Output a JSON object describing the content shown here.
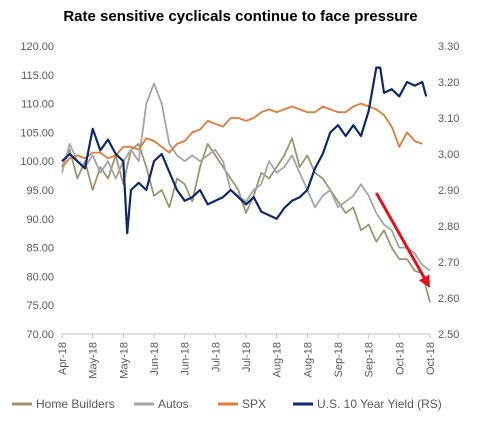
{
  "chart_data": {
    "type": "line",
    "title": "Rate sensitive cyclicals  continue to face pressure",
    "y_left": {
      "range": [
        70,
        120
      ],
      "ticks": [
        "120.00",
        "115.00",
        "110.00",
        "105.00",
        "100.00",
        "95.00",
        "90.00",
        "85.00",
        "80.00",
        "75.00",
        "70.00"
      ]
    },
    "y_right": {
      "range": [
        2.5,
        3.3
      ],
      "ticks": [
        "3.30",
        "3.20",
        "3.10",
        "3.00",
        "2.90",
        "2.80",
        "2.70",
        "2.60",
        "2.50"
      ]
    },
    "x_ticks": [
      "Apr-18",
      "May-18",
      "May-18",
      "Jun-18",
      "Jun-18",
      "Jul-18",
      "Jul-18",
      "Aug-18",
      "Aug-18",
      "Sep-18",
      "Sep-18",
      "Oct-18",
      "Oct-18"
    ],
    "grid": false,
    "legend_position": "bottom",
    "series": [
      {
        "name": "Home Builders",
        "axis": "left",
        "color": "#A09470",
        "points": [
          [
            0,
            99
          ],
          [
            2,
            102
          ],
          [
            4,
            97
          ],
          [
            6,
            100
          ],
          [
            8,
            95
          ],
          [
            10,
            99
          ],
          [
            12,
            97
          ],
          [
            14,
            101
          ],
          [
            16,
            96
          ],
          [
            18,
            102
          ],
          [
            20,
            103
          ],
          [
            22,
            99
          ],
          [
            24,
            94
          ],
          [
            26,
            95
          ],
          [
            28,
            92
          ],
          [
            30,
            97
          ],
          [
            32,
            96
          ],
          [
            34,
            93
          ],
          [
            36,
            99
          ],
          [
            38,
            103
          ],
          [
            40,
            101
          ],
          [
            42,
            99
          ],
          [
            44,
            97
          ],
          [
            46,
            95
          ],
          [
            48,
            91
          ],
          [
            50,
            94
          ],
          [
            52,
            98
          ],
          [
            54,
            97
          ],
          [
            56,
            99
          ],
          [
            58,
            101
          ],
          [
            60,
            104
          ],
          [
            62,
            99
          ],
          [
            64,
            101
          ],
          [
            66,
            98
          ],
          [
            68,
            97
          ],
          [
            70,
            95
          ],
          [
            72,
            93
          ],
          [
            74,
            91
          ],
          [
            76,
            92
          ],
          [
            78,
            88
          ],
          [
            80,
            89
          ],
          [
            82,
            86
          ],
          [
            84,
            88
          ],
          [
            86,
            85
          ],
          [
            88,
            83
          ],
          [
            90,
            83
          ],
          [
            92,
            81
          ],
          [
            94,
            80.5
          ],
          [
            96,
            75.5
          ]
        ]
      },
      {
        "name": "Autos",
        "axis": "left",
        "color": "#A5A5A5",
        "points": [
          [
            0,
            98
          ],
          [
            2,
            103
          ],
          [
            4,
            100
          ],
          [
            6,
            99
          ],
          [
            8,
            101
          ],
          [
            10,
            98
          ],
          [
            12,
            100
          ],
          [
            14,
            97
          ],
          [
            16,
            100
          ],
          [
            18,
            102
          ],
          [
            20,
            100
          ],
          [
            22,
            110
          ],
          [
            24,
            113.5
          ],
          [
            26,
            110
          ],
          [
            28,
            103
          ],
          [
            30,
            101
          ],
          [
            32,
            100
          ],
          [
            34,
            101
          ],
          [
            36,
            100
          ],
          [
            38,
            101
          ],
          [
            40,
            102
          ],
          [
            42,
            100
          ],
          [
            44,
            95
          ],
          [
            46,
            94
          ],
          [
            48,
            93
          ],
          [
            50,
            95
          ],
          [
            52,
            96
          ],
          [
            54,
            100
          ],
          [
            56,
            98
          ],
          [
            58,
            99
          ],
          [
            60,
            101
          ],
          [
            62,
            98
          ],
          [
            64,
            95
          ],
          [
            66,
            92
          ],
          [
            68,
            94
          ],
          [
            70,
            95
          ],
          [
            72,
            92
          ],
          [
            74,
            93
          ],
          [
            76,
            94
          ],
          [
            78,
            96
          ],
          [
            80,
            94
          ],
          [
            82,
            91
          ],
          [
            84,
            89
          ],
          [
            86,
            88
          ],
          [
            88,
            85
          ],
          [
            90,
            85
          ],
          [
            92,
            84
          ],
          [
            94,
            82
          ],
          [
            96,
            81
          ]
        ]
      },
      {
        "name": "SPX",
        "axis": "left",
        "color": "#E07B39",
        "points": [
          [
            0,
            99
          ],
          [
            2,
            100.5
          ],
          [
            4,
            101
          ],
          [
            6,
            100.5
          ],
          [
            8,
            101.5
          ],
          [
            10,
            101.5
          ],
          [
            12,
            100.5
          ],
          [
            14,
            101
          ],
          [
            16,
            102.5
          ],
          [
            18,
            102.5
          ],
          [
            20,
            102
          ],
          [
            22,
            104
          ],
          [
            24,
            103.5
          ],
          [
            26,
            102.5
          ],
          [
            28,
            101.5
          ],
          [
            30,
            103
          ],
          [
            32,
            103.5
          ],
          [
            34,
            105
          ],
          [
            36,
            105.5
          ],
          [
            38,
            107
          ],
          [
            40,
            106.5
          ],
          [
            42,
            106
          ],
          [
            44,
            107.5
          ],
          [
            46,
            107.5
          ],
          [
            48,
            107
          ],
          [
            50,
            107.5
          ],
          [
            52,
            108.5
          ],
          [
            54,
            109
          ],
          [
            56,
            108.5
          ],
          [
            58,
            109
          ],
          [
            60,
            109.5
          ],
          [
            62,
            109
          ],
          [
            64,
            108.5
          ],
          [
            66,
            108.5
          ],
          [
            68,
            109.5
          ],
          [
            70,
            109
          ],
          [
            72,
            108.5
          ],
          [
            74,
            108.5
          ],
          [
            76,
            109.5
          ],
          [
            78,
            110
          ],
          [
            80,
            109.5
          ],
          [
            82,
            109
          ],
          [
            84,
            108
          ],
          [
            86,
            106
          ],
          [
            88,
            102.5
          ],
          [
            90,
            105
          ],
          [
            92,
            103.5
          ],
          [
            94,
            103
          ]
        ]
      },
      {
        "name": "U.S. 10 Year Yield (RS)",
        "axis": "right",
        "color": "#0C2A6A",
        "points": [
          [
            0,
            2.98
          ],
          [
            2,
            3.0
          ],
          [
            4,
            2.98
          ],
          [
            6,
            2.96
          ],
          [
            8,
            3.07
          ],
          [
            10,
            3.01
          ],
          [
            12,
            3.04
          ],
          [
            14,
            3.0
          ],
          [
            16,
            2.98
          ],
          [
            17,
            2.78
          ],
          [
            18,
            2.9
          ],
          [
            20,
            2.92
          ],
          [
            22,
            2.9
          ],
          [
            24,
            2.98
          ],
          [
            26,
            3.0
          ],
          [
            28,
            2.95
          ],
          [
            30,
            2.9
          ],
          [
            32,
            2.87
          ],
          [
            34,
            2.88
          ],
          [
            36,
            2.9
          ],
          [
            38,
            2.86
          ],
          [
            40,
            2.87
          ],
          [
            42,
            2.88
          ],
          [
            44,
            2.9
          ],
          [
            46,
            2.88
          ],
          [
            48,
            2.86
          ],
          [
            50,
            2.88
          ],
          [
            52,
            2.84
          ],
          [
            54,
            2.83
          ],
          [
            56,
            2.82
          ],
          [
            58,
            2.85
          ],
          [
            60,
            2.87
          ],
          [
            62,
            2.88
          ],
          [
            64,
            2.9
          ],
          [
            66,
            2.96
          ],
          [
            68,
            3.0
          ],
          [
            70,
            3.06
          ],
          [
            72,
            3.08
          ],
          [
            74,
            3.05
          ],
          [
            76,
            3.08
          ],
          [
            78,
            3.05
          ],
          [
            80,
            3.12
          ],
          [
            82,
            3.24
          ],
          [
            83,
            3.24
          ],
          [
            84,
            3.17
          ],
          [
            86,
            3.18
          ],
          [
            88,
            3.16
          ],
          [
            90,
            3.2
          ],
          [
            92,
            3.19
          ],
          [
            94,
            3.2
          ],
          [
            95,
            3.16
          ]
        ]
      }
    ],
    "annotation": {
      "type": "arrow",
      "color": "#E0141E",
      "from": [
        82,
        94.5
      ],
      "to": [
        96,
        78
      ]
    }
  }
}
